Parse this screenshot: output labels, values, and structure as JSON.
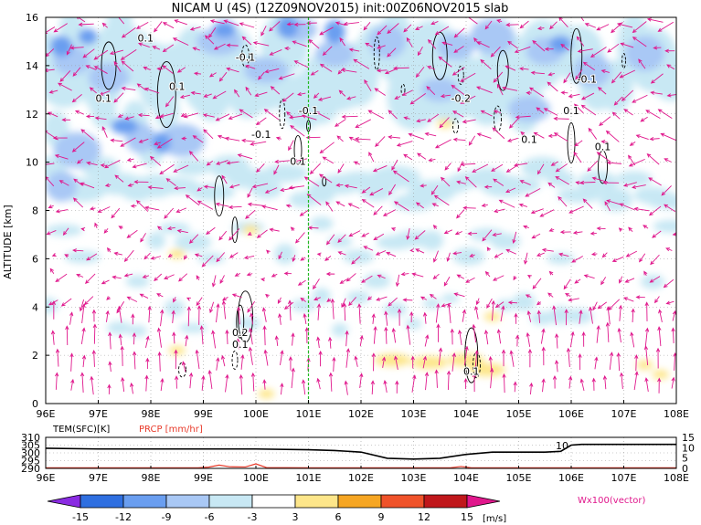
{
  "colors": {
    "vector": "#e0178c",
    "precip": "#e83a2a",
    "time_marker": "#22bb22",
    "neg_minus15": "#8a2be2",
    "neg_minus12": "#2f6fe0",
    "neg_minus9": "#6a9ef0",
    "neg_minus6": "#a9c8f5",
    "neg_minus3": "#c8e8f4",
    "pos_3": "#fde68a",
    "pos_6": "#f6a623",
    "pos_9": "#f0532a",
    "pos_12": "#c0171b",
    "pos_15": "#e0178c"
  },
  "chart_data": [
    {
      "type": "heatmap",
      "title": "NICAM U (4S) (12Z09NOV2015) init:00Z06NOV2015 slab",
      "xlabel": "",
      "ylabel": "ALTITUDE [km]",
      "x_ticks": [
        "96E",
        "97E",
        "98E",
        "99E",
        "100E",
        "101E",
        "102E",
        "103E",
        "104E",
        "105E",
        "106E",
        "107E",
        "108E"
      ],
      "y_ticks": [
        "0",
        "2",
        "4",
        "6",
        "8",
        "10",
        "12",
        "14",
        "16"
      ],
      "xlim": [
        96,
        108
      ],
      "ylim": [
        0,
        16
      ],
      "time_marker_lon": 101,
      "contour_labels": [
        {
          "text": "0.1",
          "lon": 97.1,
          "alt": 12.5
        },
        {
          "text": "0.1",
          "lon": 97.9,
          "alt": 15.0
        },
        {
          "text": "0.1",
          "lon": 98.5,
          "alt": 13.0
        },
        {
          "text": "-0.1",
          "lon": 99.8,
          "alt": 14.2
        },
        {
          "text": "-0.1",
          "lon": 100.1,
          "alt": 11.0
        },
        {
          "text": "0.1",
          "lon": 100.8,
          "alt": 9.9
        },
        {
          "text": "-0.1",
          "lon": 101.0,
          "alt": 12.0
        },
        {
          "text": "-0.2",
          "lon": 103.9,
          "alt": 12.5
        },
        {
          "text": "0.1",
          "lon": 105.2,
          "alt": 10.8
        },
        {
          "text": "-0.1",
          "lon": 106.3,
          "alt": 13.3
        },
        {
          "text": "0.1",
          "lon": 106.0,
          "alt": 12.0
        },
        {
          "text": "0.1",
          "lon": 106.6,
          "alt": 10.5
        },
        {
          "text": "0.2",
          "lon": 99.7,
          "alt": 2.8
        },
        {
          "text": "0.1",
          "lon": 99.7,
          "alt": 2.3
        },
        {
          "text": "0.1",
          "lon": 104.1,
          "alt": 1.2
        }
      ]
    },
    {
      "type": "line",
      "title": "",
      "left_label": "TEM(SFC)[K]",
      "right_label": "PRCP [mm/hr]",
      "left_ticks": [
        "310",
        "305",
        "300",
        "295",
        "290"
      ],
      "right_ticks": [
        "15",
        "10",
        "5",
        "0"
      ],
      "x_ticks": [
        "96E",
        "97E",
        "98E",
        "99E",
        "100E",
        "101E",
        "102E",
        "103E",
        "104E",
        "105E",
        "106E",
        "107E",
        "108E"
      ],
      "xlim": [
        96,
        108
      ],
      "left_ylim": [
        290,
        310
      ],
      "right_ylim": [
        0,
        15
      ],
      "value_annotation": "10",
      "series": [
        {
          "name": "TEM(SFC)[K]",
          "x": [
            96,
            97,
            98,
            99,
            100,
            101,
            101.5,
            102,
            102.5,
            103,
            103.5,
            104,
            104.5,
            105,
            105.5,
            105.8,
            106,
            106.2,
            107,
            108
          ],
          "y": [
            303,
            302.5,
            302.5,
            302.5,
            302.5,
            302,
            301.5,
            300.5,
            296.5,
            296,
            296.5,
            299,
            300.5,
            300.5,
            300.5,
            301,
            305,
            305.5,
            305.5,
            305.5
          ]
        },
        {
          "name": "PRCP [mm/hr]",
          "x": [
            96,
            98.9,
            99.1,
            99.3,
            99.5,
            99.8,
            100,
            100.2,
            101,
            103.7,
            103.9,
            104.1,
            108
          ],
          "y": [
            0.3,
            0.3,
            0.6,
            1.6,
            0.8,
            0.7,
            2.2,
            0.4,
            0.3,
            0.3,
            0.9,
            0.3,
            0.3
          ]
        }
      ]
    },
    {
      "type": "legend",
      "ticks": [
        "-15",
        "-12",
        "-9",
        "-6",
        "-3",
        "3",
        "6",
        "9",
        "12",
        "15"
      ],
      "unit": "[m/s]",
      "vector_label": "Wx100(vector)"
    }
  ]
}
